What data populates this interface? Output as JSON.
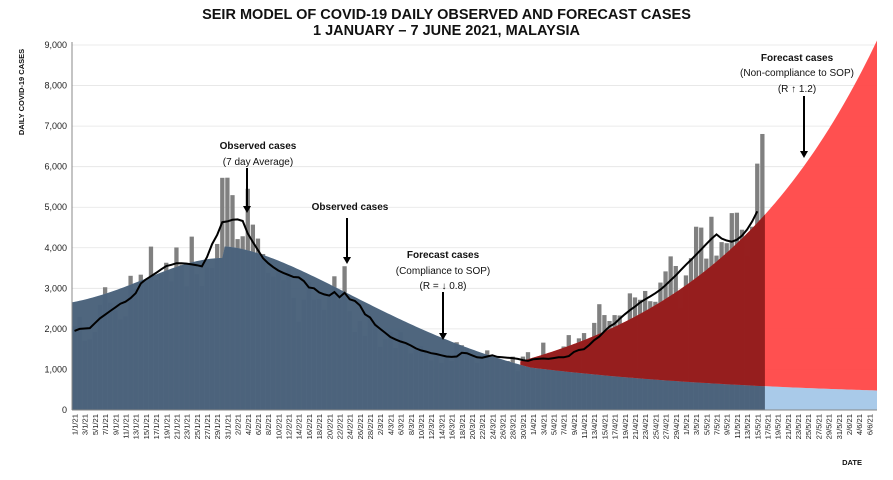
{
  "chart_data": {
    "type": "bar",
    "title": "SEIR MODEL OF COVID-19 DAILY OBSERVED AND FORECAST CASES",
    "subtitle": "1 JANUARY  – 7 JUNE  2021, MALAYSIA",
    "ylabel": "DAILY COVID-19 CASES",
    "xlabel": "DATE",
    "ylim": [
      0,
      9000
    ],
    "yticks": [
      "0",
      "1,000",
      "2,000",
      "3,000",
      "4,000",
      "5,000",
      "6,000",
      "7,000",
      "8,000",
      "9,000"
    ],
    "xtick_labels": [
      "1/1/21",
      "3/1/21",
      "5/1/21",
      "7/1/21",
      "9/1/21",
      "11/1/21",
      "13/1/21",
      "15/1/21",
      "17/1/21",
      "19/1/21",
      "21/1/21",
      "23/1/21",
      "25/1/21",
      "27/1/21",
      "29/1/21",
      "31/1/21",
      "2/2/21",
      "4/2/21",
      "6/2/21",
      "8/2/21",
      "10/2/21",
      "12/2/21",
      "14/2/21",
      "16/2/21",
      "18/2/21",
      "20/2/21",
      "22/2/21",
      "24/2/21",
      "26/2/21",
      "28/2/21",
      "2/3/21",
      "4/3/21",
      "6/3/21",
      "8/3/21",
      "10/3/21",
      "12/3/21",
      "14/3/21",
      "16/3/21",
      "18/3/21",
      "20/3/21",
      "22/3/21",
      "24/3/21",
      "26/3/21",
      "28/3/21",
      "30/3/21",
      "1/4/21",
      "3/4/21",
      "5/4/21",
      "7/4/21",
      "9/4/21",
      "11/4/21",
      "13/4/21",
      "15/4/21",
      "17/4/21",
      "19/4/21",
      "21/4/21",
      "23/4/21",
      "25/4/21",
      "27/4/21",
      "29/4/21",
      "1/5/21",
      "3/5/21",
      "5/5/21",
      "7/5/21",
      "9/5/21",
      "11/5/21",
      "13/5/21",
      "15/5/21",
      "17/5/21",
      "19/5/21",
      "21/5/21",
      "23/5/21",
      "25/5/21",
      "27/5/21",
      "29/5/21",
      "31/5/21",
      "2/6/21",
      "4/6/21",
      "6/6/21"
    ],
    "observed_daily": {
      "name": "Observed cases",
      "values": [
        2068,
        2295,
        1704,
        1741,
        1923,
        2593,
        3027,
        2643,
        2451,
        2232,
        2309,
        3309,
        2985,
        3337,
        3142,
        4029,
        3211,
        3346,
        3631,
        3170,
        4008,
        3585,
        3048,
        4275,
        3346,
        3055,
        3511,
        3499,
        4094,
        5725,
        5728,
        5298,
        4214,
        4284,
        5455,
        4571,
        4227,
        3847,
        3379,
        3288,
        3391,
        3200,
        3499,
        2764,
        2176,
        2720,
        3150,
        2720,
        2736,
        2468,
        2875,
        3297,
        2712,
        3545,
        2437,
        1924,
        2192,
        1828,
        2264,
        2154,
        1555,
        1745,
        1924,
        1529,
        1919,
        1683,
        1394,
        1478,
        1575,
        1439,
        1219,
        1354,
        1163,
        1303,
        1208,
        1671,
        1598,
        1512,
        1347,
        1163,
        1345,
        1470,
        1289,
        1275,
        1209,
        1208,
        1316,
        954,
        1317,
        1426,
        1148,
        1205,
        1661,
        1181,
        1279,
        1291,
        1566,
        1847,
        1322,
        1767,
        1897,
        1671,
        2148,
        2609,
        2341,
        2195,
        2340,
        2331,
        2148,
        2876,
        2776,
        2718,
        2935,
        2683,
        2668,
        3142,
        3418,
        3788,
        3551,
        2500,
        3319,
        3744,
        4519,
        4498,
        3733,
        4765,
        3807,
        4140,
        4113,
        4855,
        4865,
        4446,
        3780,
        4519,
        6075,
        6806
      ]
    },
    "observed_7day_avg": {
      "name": "Observed cases",
      "legend": "(7 day Average)",
      "values": [
        1950,
        2000,
        2010,
        2020,
        2140,
        2260,
        2350,
        2440,
        2530,
        2620,
        2670,
        2760,
        2880,
        3120,
        3220,
        3300,
        3380,
        3470,
        3550,
        3580,
        3620,
        3620,
        3610,
        3590,
        3570,
        3540,
        3770,
        4090,
        4320,
        4630,
        4650,
        4690,
        4700,
        4660,
        4350,
        4140,
        3940,
        3740,
        3620,
        3520,
        3440,
        3380,
        3330,
        3280,
        3270,
        3180,
        3020,
        3000,
        2900,
        2850,
        2820,
        2910,
        2780,
        2890,
        2730,
        2690,
        2580,
        2360,
        2280,
        2100,
        2000,
        1900,
        1800,
        1740,
        1690,
        1650,
        1590,
        1520,
        1470,
        1440,
        1400,
        1380,
        1350,
        1320,
        1310,
        1320,
        1410,
        1400,
        1350,
        1300,
        1290,
        1320,
        1350,
        1310,
        1300,
        1290,
        1280,
        1260,
        1230,
        1210,
        1250,
        1260,
        1270,
        1260,
        1280,
        1300,
        1300,
        1330,
        1430,
        1480,
        1500,
        1600,
        1720,
        1810,
        1940,
        2060,
        2130,
        2250,
        2360,
        2460,
        2550,
        2650,
        2730,
        2800,
        2880,
        2970,
        3080,
        3200,
        3320,
        3450,
        3580,
        3700,
        3830,
        3960,
        4090,
        4220,
        4330,
        4230,
        4180,
        4150,
        4200,
        4300,
        4450,
        4650,
        4900
      ]
    },
    "forecast_compliance": {
      "name": "Forecast cases",
      "legend": "(Compliance to SOP)",
      "r_label": "(R = ↓ 0.8)"
    },
    "forecast_noncompliance": {
      "name": "Forecast cases",
      "legend": "(Non-compliance to SOP)",
      "r_label": "(R ↑ 1.2)"
    }
  },
  "colors": {
    "bars": "#808080",
    "avg_line": "#000000",
    "compliance_fill": "#9dc3e6",
    "noncompliance_fill": "#ff4747",
    "overlap_dark": "#3b4f66",
    "overlap_red": "#8b1a1a"
  }
}
